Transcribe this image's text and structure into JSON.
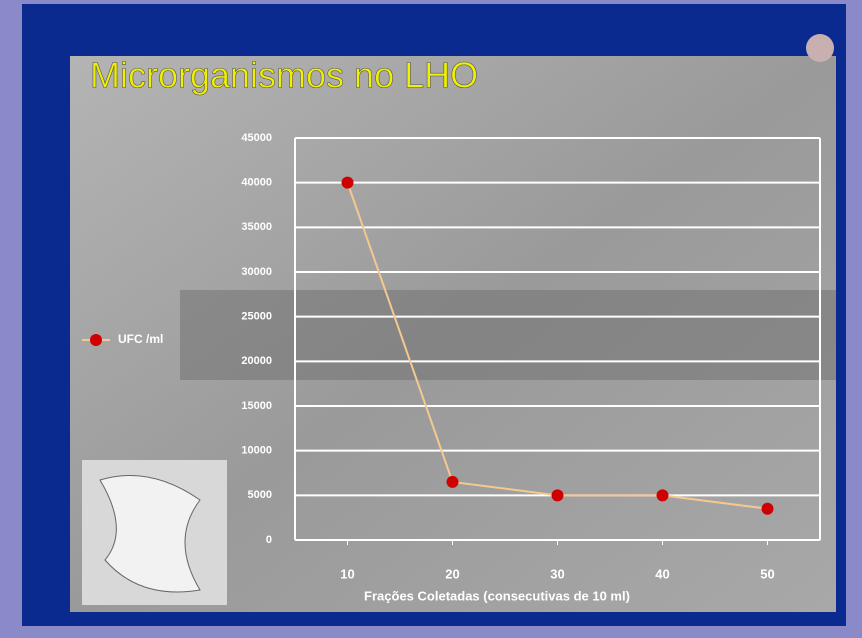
{
  "chart_data": {
    "type": "line",
    "title": "Microrganismos no LHO",
    "x_label": "Frações Coletadas (consecutivas de 10 ml)",
    "categories": [
      "10",
      "20",
      "30",
      "40",
      "50"
    ],
    "series": [
      {
        "name": "UFC /ml",
        "color": "#f5c890",
        "marker_color": "#d00000",
        "values": [
          40000,
          6500,
          5000,
          5000,
          3500
        ]
      }
    ],
    "ylim": [
      0,
      45000
    ],
    "yticks": [
      0,
      5000,
      10000,
      15000,
      20000,
      25000,
      30000,
      35000,
      40000,
      45000
    ],
    "grid": true,
    "legend": "left"
  }
}
